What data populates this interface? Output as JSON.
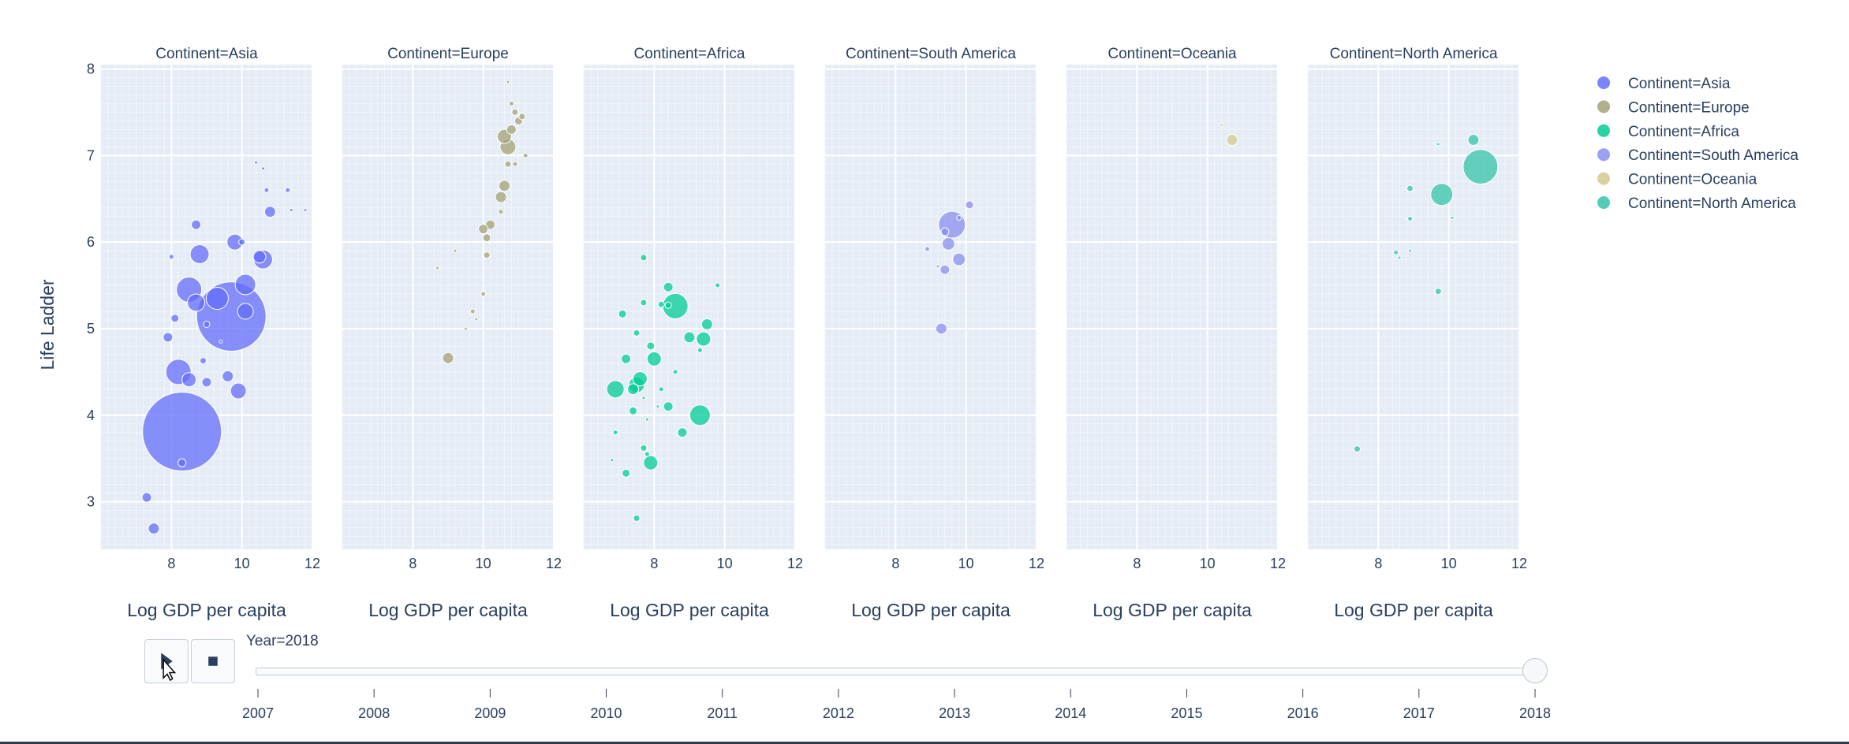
{
  "chart_data": {
    "type": "scatter",
    "subtype": "bubble, faceted by Continent, animated by Year",
    "ylabel": "Life Ladder",
    "xlabel": "Log GDP per capita",
    "xlim": [
      6,
      12
    ],
    "ylim": [
      2.45,
      8.05
    ],
    "x_ticks": [
      "8",
      "10",
      "12"
    ],
    "y_ticks": [
      "3",
      "4",
      "5",
      "6",
      "7",
      "8"
    ],
    "facets": [
      {
        "name": "Continent=Asia",
        "color": "#636efa",
        "points": [
          {
            "x": 7.3,
            "y": 3.05,
            "s": 6
          },
          {
            "x": 7.5,
            "y": 2.69,
            "s": 7
          },
          {
            "x": 8.3,
            "y": 3.81,
            "s": 50
          },
          {
            "x": 8.3,
            "y": 3.45,
            "s": 5
          },
          {
            "x": 8.2,
            "y": 4.5,
            "s": 16
          },
          {
            "x": 8.5,
            "y": 4.41,
            "s": 9
          },
          {
            "x": 8.9,
            "y": 4.63,
            "s": 4
          },
          {
            "x": 9.0,
            "y": 4.38,
            "s": 6
          },
          {
            "x": 9.6,
            "y": 4.45,
            "s": 7
          },
          {
            "x": 9.9,
            "y": 4.28,
            "s": 10
          },
          {
            "x": 7.9,
            "y": 4.9,
            "s": 6
          },
          {
            "x": 8.1,
            "y": 5.12,
            "s": 5
          },
          {
            "x": 8.5,
            "y": 5.45,
            "s": 16
          },
          {
            "x": 8.7,
            "y": 5.3,
            "s": 11
          },
          {
            "x": 9.0,
            "y": 5.05,
            "s": 4
          },
          {
            "x": 9.3,
            "y": 5.35,
            "s": 14
          },
          {
            "x": 9.7,
            "y": 5.14,
            "s": 44
          },
          {
            "x": 10.1,
            "y": 5.2,
            "s": 10
          },
          {
            "x": 10.1,
            "y": 5.51,
            "s": 13
          },
          {
            "x": 8.0,
            "y": 5.83,
            "s": 3
          },
          {
            "x": 8.8,
            "y": 5.86,
            "s": 12
          },
          {
            "x": 8.7,
            "y": 6.2,
            "s": 6
          },
          {
            "x": 9.8,
            "y": 6.0,
            "s": 10
          },
          {
            "x": 10.0,
            "y": 6.0,
            "s": 4
          },
          {
            "x": 10.6,
            "y": 5.8,
            "s": 12
          },
          {
            "x": 10.5,
            "y": 5.83,
            "s": 8
          },
          {
            "x": 10.8,
            "y": 6.35,
            "s": 7
          },
          {
            "x": 10.7,
            "y": 6.6,
            "s": 3
          },
          {
            "x": 10.4,
            "y": 6.92,
            "s": 2
          },
          {
            "x": 10.6,
            "y": 6.85,
            "s": 2
          },
          {
            "x": 11.3,
            "y": 6.6,
            "s": 3
          },
          {
            "x": 11.4,
            "y": 6.37,
            "s": 2
          },
          {
            "x": 11.8,
            "y": 6.37,
            "s": 2
          },
          {
            "x": 9.4,
            "y": 4.85,
            "s": 2
          }
        ]
      },
      {
        "name": "Continent=Europe",
        "color": "#a3a275",
        "points": [
          {
            "x": 9.0,
            "y": 4.66,
            "s": 7
          },
          {
            "x": 9.8,
            "y": 5.11,
            "s": 2
          },
          {
            "x": 9.7,
            "y": 5.2,
            "s": 3
          },
          {
            "x": 10.0,
            "y": 5.4,
            "s": 3
          },
          {
            "x": 9.5,
            "y": 5.0,
            "s": 2
          },
          {
            "x": 9.2,
            "y": 5.9,
            "s": 2
          },
          {
            "x": 8.7,
            "y": 5.7,
            "s": 2
          },
          {
            "x": 10.1,
            "y": 5.85,
            "s": 4
          },
          {
            "x": 10.1,
            "y": 6.05,
            "s": 5
          },
          {
            "x": 10.2,
            "y": 6.2,
            "s": 6
          },
          {
            "x": 10.0,
            "y": 6.15,
            "s": 6
          },
          {
            "x": 10.5,
            "y": 6.52,
            "s": 7
          },
          {
            "x": 10.6,
            "y": 6.65,
            "s": 7
          },
          {
            "x": 10.7,
            "y": 6.9,
            "s": 4
          },
          {
            "x": 10.9,
            "y": 6.9,
            "s": 3
          },
          {
            "x": 10.7,
            "y": 7.1,
            "s": 10
          },
          {
            "x": 10.6,
            "y": 7.22,
            "s": 9
          },
          {
            "x": 10.8,
            "y": 7.3,
            "s": 6
          },
          {
            "x": 11.0,
            "y": 7.4,
            "s": 5
          },
          {
            "x": 10.9,
            "y": 7.5,
            "s": 4
          },
          {
            "x": 11.1,
            "y": 7.45,
            "s": 4
          },
          {
            "x": 11.2,
            "y": 7.0,
            "s": 3
          },
          {
            "x": 10.8,
            "y": 7.6,
            "s": 3
          },
          {
            "x": 10.7,
            "y": 7.85,
            "s": 2
          },
          {
            "x": 10.5,
            "y": 6.35,
            "s": 3
          }
        ]
      },
      {
        "name": "Continent=Africa",
        "color": "#00cc96",
        "points": [
          {
            "x": 6.8,
            "y": 3.48,
            "s": 2
          },
          {
            "x": 7.2,
            "y": 3.33,
            "s": 5
          },
          {
            "x": 7.5,
            "y": 2.81,
            "s": 4
          },
          {
            "x": 7.8,
            "y": 3.55,
            "s": 3
          },
          {
            "x": 7.9,
            "y": 3.45,
            "s": 9
          },
          {
            "x": 7.7,
            "y": 3.62,
            "s": 4
          },
          {
            "x": 8.8,
            "y": 3.8,
            "s": 6
          },
          {
            "x": 9.3,
            "y": 4.0,
            "s": 13
          },
          {
            "x": 6.9,
            "y": 3.8,
            "s": 3
          },
          {
            "x": 7.4,
            "y": 4.05,
            "s": 5
          },
          {
            "x": 6.9,
            "y": 4.3,
            "s": 11
          },
          {
            "x": 7.7,
            "y": 4.2,
            "s": 2
          },
          {
            "x": 7.5,
            "y": 4.35,
            "s": 10
          },
          {
            "x": 7.6,
            "y": 4.42,
            "s": 9
          },
          {
            "x": 7.4,
            "y": 4.3,
            "s": 7
          },
          {
            "x": 7.2,
            "y": 4.65,
            "s": 6
          },
          {
            "x": 8.0,
            "y": 4.65,
            "s": 9
          },
          {
            "x": 7.9,
            "y": 4.8,
            "s": 5
          },
          {
            "x": 8.2,
            "y": 4.3,
            "s": 3
          },
          {
            "x": 8.4,
            "y": 4.1,
            "s": 6
          },
          {
            "x": 8.6,
            "y": 4.5,
            "s": 3
          },
          {
            "x": 9.0,
            "y": 4.9,
            "s": 7
          },
          {
            "x": 9.4,
            "y": 4.88,
            "s": 9
          },
          {
            "x": 9.5,
            "y": 5.05,
            "s": 7
          },
          {
            "x": 9.3,
            "y": 4.75,
            "s": 3
          },
          {
            "x": 7.5,
            "y": 4.95,
            "s": 4
          },
          {
            "x": 7.1,
            "y": 5.17,
            "s": 5
          },
          {
            "x": 7.7,
            "y": 5.3,
            "s": 4
          },
          {
            "x": 8.2,
            "y": 5.28,
            "s": 4
          },
          {
            "x": 8.4,
            "y": 5.27,
            "s": 4
          },
          {
            "x": 8.6,
            "y": 5.26,
            "s": 16
          },
          {
            "x": 8.4,
            "y": 5.48,
            "s": 6
          },
          {
            "x": 9.8,
            "y": 5.5,
            "s": 3
          },
          {
            "x": 7.7,
            "y": 5.82,
            "s": 4
          },
          {
            "x": 7.8,
            "y": 3.95,
            "s": 2
          },
          {
            "x": 8.1,
            "y": 4.1,
            "s": 2
          }
        ]
      },
      {
        "name": "Continent=South America",
        "color": "#8a8ff0",
        "points": [
          {
            "x": 9.3,
            "y": 5.0,
            "s": 7
          },
          {
            "x": 9.4,
            "y": 5.68,
            "s": 6
          },
          {
            "x": 9.2,
            "y": 5.72,
            "s": 2
          },
          {
            "x": 9.8,
            "y": 5.8,
            "s": 8
          },
          {
            "x": 9.5,
            "y": 5.98,
            "s": 8
          },
          {
            "x": 8.9,
            "y": 5.92,
            "s": 3
          },
          {
            "x": 9.4,
            "y": 6.12,
            "s": 5
          },
          {
            "x": 9.6,
            "y": 6.2,
            "s": 17
          },
          {
            "x": 9.8,
            "y": 6.28,
            "s": 3
          },
          {
            "x": 10.1,
            "y": 6.43,
            "s": 5
          }
        ]
      },
      {
        "name": "Continent=Oceania",
        "color": "#d4c98f",
        "points": [
          {
            "x": 10.7,
            "y": 7.18,
            "s": 7
          },
          {
            "x": 10.4,
            "y": 7.35,
            "s": 2
          }
        ]
      },
      {
        "name": "Continent=North America",
        "color": "#36c3a8",
        "points": [
          {
            "x": 7.4,
            "y": 3.61,
            "s": 4
          },
          {
            "x": 9.7,
            "y": 5.43,
            "s": 4
          },
          {
            "x": 8.5,
            "y": 5.88,
            "s": 3
          },
          {
            "x": 8.6,
            "y": 5.82,
            "s": 2
          },
          {
            "x": 8.9,
            "y": 5.9,
            "s": 2
          },
          {
            "x": 8.9,
            "y": 6.27,
            "s": 3
          },
          {
            "x": 10.1,
            "y": 6.28,
            "s": 2
          },
          {
            "x": 8.9,
            "y": 6.62,
            "s": 4
          },
          {
            "x": 9.8,
            "y": 6.55,
            "s": 14
          },
          {
            "x": 10.9,
            "y": 6.87,
            "s": 22
          },
          {
            "x": 9.7,
            "y": 7.13,
            "s": 2
          },
          {
            "x": 10.7,
            "y": 7.18,
            "s": 7
          }
        ]
      }
    ],
    "legend": [
      {
        "label": "Continent=Asia",
        "color": "#636efa"
      },
      {
        "label": "Continent=Europe",
        "color": "#a3a275"
      },
      {
        "label": "Continent=Africa",
        "color": "#00cc96"
      },
      {
        "label": "Continent=South America",
        "color": "#8a8ff0"
      },
      {
        "label": "Continent=Oceania",
        "color": "#d4c98f"
      },
      {
        "label": "Continent=North America",
        "color": "#36c3a8"
      }
    ],
    "legend_position": "top-right",
    "grid": true,
    "plot_background": "#e5ecf6"
  },
  "animation": {
    "current_label": "Year=2018",
    "current_value": "2018",
    "years": [
      "2007",
      "2008",
      "2009",
      "2010",
      "2011",
      "2012",
      "2013",
      "2014",
      "2015",
      "2016",
      "2017",
      "2018"
    ],
    "play_icon": "play-icon",
    "stop_icon": "stop-icon"
  }
}
